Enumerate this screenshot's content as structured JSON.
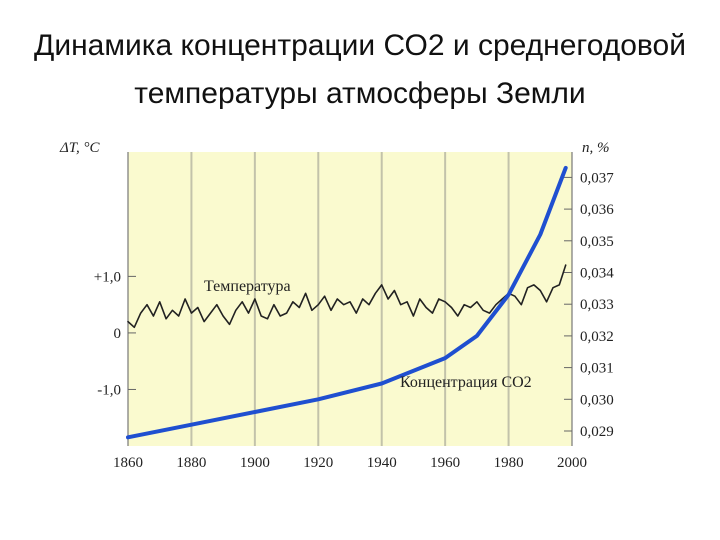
{
  "title_lines": [
    "Динамика концентрации СО2 и среднегодовой",
    "температуры атмосферы Земли"
  ],
  "chart_data": {
    "type": "line",
    "left_axis_label": "ΔT, °C",
    "right_axis_label": "n, %",
    "x_ticks": [
      "1860",
      "1880",
      "1900",
      "1920",
      "1940",
      "1960",
      "1980",
      "2000"
    ],
    "xlim": [
      1860,
      2000
    ],
    "left_ticks": [
      {
        "value": 1.0,
        "label": "+1,0"
      },
      {
        "value": 0.0,
        "label": "0"
      },
      {
        "value": -1.0,
        "label": "-1,0"
      }
    ],
    "left_ylim": [
      -2.0,
      3.2
    ],
    "right_ticks": [
      {
        "value": 0.037,
        "label": "0,037"
      },
      {
        "value": 0.036,
        "label": "0,036"
      },
      {
        "value": 0.035,
        "label": "0,035"
      },
      {
        "value": 0.034,
        "label": "0,034"
      },
      {
        "value": 0.033,
        "label": "0,033"
      },
      {
        "value": 0.032,
        "label": "0,032"
      },
      {
        "value": 0.031,
        "label": "0,031"
      },
      {
        "value": 0.03,
        "label": "0,030"
      },
      {
        "value": 0.029,
        "label": "0,029"
      }
    ],
    "series": [
      {
        "name": "Температура",
        "axis": "left",
        "color": "#222222",
        "x": [
          1860,
          1862,
          1864,
          1866,
          1868,
          1870,
          1872,
          1874,
          1876,
          1878,
          1880,
          1882,
          1884,
          1886,
          1888,
          1890,
          1892,
          1894,
          1896,
          1898,
          1900,
          1902,
          1904,
          1906,
          1908,
          1910,
          1912,
          1914,
          1916,
          1918,
          1920,
          1922,
          1924,
          1926,
          1928,
          1930,
          1932,
          1934,
          1936,
          1938,
          1940,
          1942,
          1944,
          1946,
          1948,
          1950,
          1952,
          1954,
          1956,
          1958,
          1960,
          1962,
          1964,
          1966,
          1968,
          1970,
          1972,
          1974,
          1976,
          1978,
          1980,
          1982,
          1984,
          1986,
          1988,
          1990,
          1992,
          1994,
          1996,
          1998
        ],
        "y": [
          0.2,
          0.1,
          0.35,
          0.5,
          0.3,
          0.55,
          0.25,
          0.4,
          0.3,
          0.6,
          0.35,
          0.45,
          0.2,
          0.35,
          0.5,
          0.3,
          0.15,
          0.4,
          0.55,
          0.35,
          0.6,
          0.3,
          0.25,
          0.5,
          0.3,
          0.35,
          0.55,
          0.45,
          0.7,
          0.4,
          0.5,
          0.65,
          0.4,
          0.6,
          0.5,
          0.55,
          0.35,
          0.6,
          0.5,
          0.7,
          0.85,
          0.6,
          0.75,
          0.5,
          0.55,
          0.3,
          0.6,
          0.45,
          0.35,
          0.6,
          0.55,
          0.45,
          0.3,
          0.5,
          0.45,
          0.55,
          0.4,
          0.35,
          0.5,
          0.6,
          0.7,
          0.65,
          0.5,
          0.8,
          0.85,
          0.75,
          0.55,
          0.8,
          0.85,
          1.2
        ]
      },
      {
        "name": "Концентрация CO2",
        "axis": "right",
        "color": "#1f4fd0",
        "x": [
          1860,
          1880,
          1900,
          1920,
          1940,
          1960,
          1970,
          1980,
          1990,
          1998
        ],
        "y": [
          0.0288,
          0.0292,
          0.0296,
          0.03,
          0.0305,
          0.0313,
          0.032,
          0.0333,
          0.0352,
          0.0373
        ]
      }
    ]
  }
}
